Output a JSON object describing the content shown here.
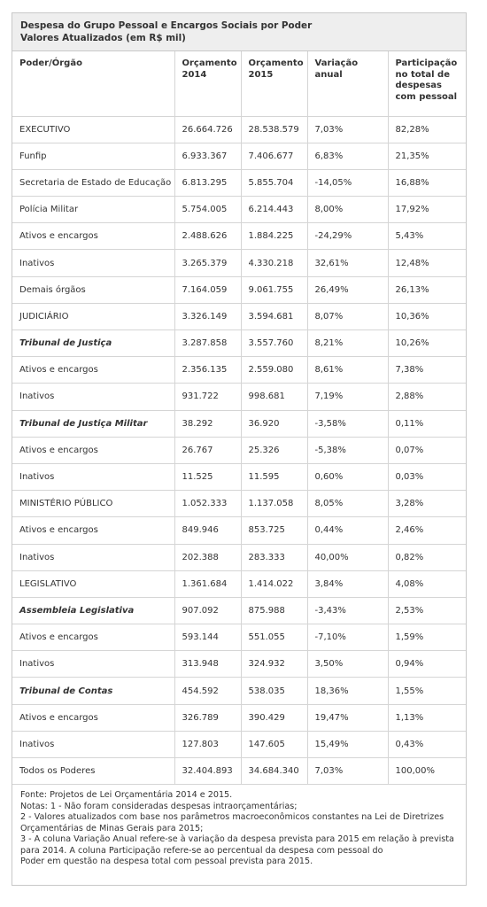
{
  "title_lines": [
    "Despesa do Grupo Pessoal e Encargos Sociais por Poder",
    "Valores Atualizados (em R$ mil)"
  ],
  "headers": [
    "Poder/Órgão",
    "Orçamento 2014",
    "Orçamento 2015",
    "Variação anual",
    "Participação no total de despesas com pessoal"
  ],
  "rows": [
    {
      "label": "EXECUTIVO",
      "v2014": "26.664.726",
      "v2015": "28.538.579",
      "var": "7,03%",
      "part": "82,28%",
      "style": "normal"
    },
    {
      "label": "Funfip",
      "v2014": "6.933.367",
      "v2015": "7.406.677",
      "var": "6,83%",
      "part": "21,35%",
      "style": "normal"
    },
    {
      "label": "Secretaria de Estado de Educação",
      "v2014": "6.813.295",
      "v2015": "5.855.704",
      "var": "-14,05%",
      "part": "16,88%",
      "style": "normal"
    },
    {
      "label": "Polícia Militar",
      "v2014": "5.754.005",
      "v2015": "6.214.443",
      "var": "8,00%",
      "part": "17,92%",
      "style": "normal"
    },
    {
      "label": "Ativos e encargos",
      "v2014": "2.488.626",
      "v2015": "1.884.225",
      "var": "-24,29%",
      "part": "5,43%",
      "style": "normal"
    },
    {
      "label": "Inativos",
      "v2014": "3.265.379",
      "v2015": "4.330.218",
      "var": "32,61%",
      "part": "12,48%",
      "style": "normal"
    },
    {
      "label": "Demais órgãos",
      "v2014": "7.164.059",
      "v2015": "9.061.755",
      "var": "26,49%",
      "part": "26,13%",
      "style": "normal"
    },
    {
      "label": "JUDICIÁRIO",
      "v2014": "3.326.149",
      "v2015": "3.594.681",
      "var": "8,07%",
      "part": "10,36%",
      "style": "normal"
    },
    {
      "label": "Tribunal de Justiça",
      "v2014": "3.287.858",
      "v2015": "3.557.760",
      "var": "8,21%",
      "part": "10,26%",
      "style": "bold-italic"
    },
    {
      "label": "Ativos e encargos",
      "v2014": "2.356.135",
      "v2015": "2.559.080",
      "var": "8,61%",
      "part": "7,38%",
      "style": "normal"
    },
    {
      "label": "Inativos",
      "v2014": "931.722",
      "v2015": "998.681",
      "var": "7,19%",
      "part": "2,88%",
      "style": "normal"
    },
    {
      "label": "Tribunal de Justiça Militar",
      "v2014": "38.292",
      "v2015": "36.920",
      "var": "-3,58%",
      "part": "0,11%",
      "style": "bold-italic"
    },
    {
      "label": "Ativos e encargos",
      "v2014": "26.767",
      "v2015": "25.326",
      "var": "-5,38%",
      "part": "0,07%",
      "style": "normal"
    },
    {
      "label": "Inativos",
      "v2014": "11.525",
      "v2015": "11.595",
      "var": "0,60%",
      "part": "0,03%",
      "style": "normal"
    },
    {
      "label": "MINISTÉRIO PÚBLICO",
      "v2014": "1.052.333",
      "v2015": "1.137.058",
      "var": "8,05%",
      "part": "3,28%",
      "style": "normal"
    },
    {
      "label": "Ativos e encargos",
      "v2014": "849.946",
      "v2015": "853.725",
      "var": "0,44%",
      "part": "2,46%",
      "style": "normal"
    },
    {
      "label": "Inativos",
      "v2014": "202.388",
      "v2015": "283.333",
      "var": "40,00%",
      "part": "0,82%",
      "style": "normal"
    },
    {
      "label": "LEGISLATIVO",
      "v2014": "1.361.684",
      "v2015": "1.414.022",
      "var": "3,84%",
      "part": "4,08%",
      "style": "normal"
    },
    {
      "label": "Assembleia Legislativa",
      "v2014": "907.092",
      "v2015": "875.988",
      "var": "-3,43%",
      "part": "2,53%",
      "style": "bold-italic"
    },
    {
      "label": "Ativos e encargos",
      "v2014": "593.144",
      "v2015": "551.055",
      "var": "-7,10%",
      "part": "1,59%",
      "style": "normal"
    },
    {
      "label": "Inativos",
      "v2014": "313.948",
      "v2015": "324.932",
      "var": "3,50%",
      "part": "0,94%",
      "style": "normal"
    },
    {
      "label": "Tribunal de Contas",
      "v2014": "454.592",
      "v2015": "538.035",
      "var": "18,36%",
      "part": "1,55%",
      "style": "bold-italic"
    },
    {
      "label": "Ativos e encargos",
      "v2014": "326.789",
      "v2015": "390.429",
      "var": "19,47%",
      "part": "1,13%",
      "style": "normal"
    },
    {
      "label": "Inativos",
      "v2014": "127.803",
      "v2015": "147.605",
      "var": "15,49%",
      "part": "0,43%",
      "style": "normal"
    },
    {
      "label": "Todos os Poderes",
      "v2014": "32.404.893",
      "v2015": "34.684.340",
      "var": "7,03%",
      "part": "100,00%",
      "style": "normal"
    }
  ],
  "notes": [
    "Fonte: Projetos de Lei Orçamentária 2014 e 2015.",
    "Notas: 1 - Não foram consideradas despesas intraorçamentárias;",
    "2 - Valores atualizados com base nos parâmetros macroeconômicos constantes na Lei de Diretrizes",
    "Orçamentárias de Minas Gerais para 2015;",
    "3 - A coluna Variação Anual refere-se à variação da despesa prevista para 2015 em relação à prevista",
    "para 2014. A coluna Participação refere-se ao percentual da despesa com pessoal do",
    "Poder em questão na despesa total com pessoal prevista para 2015."
  ]
}
